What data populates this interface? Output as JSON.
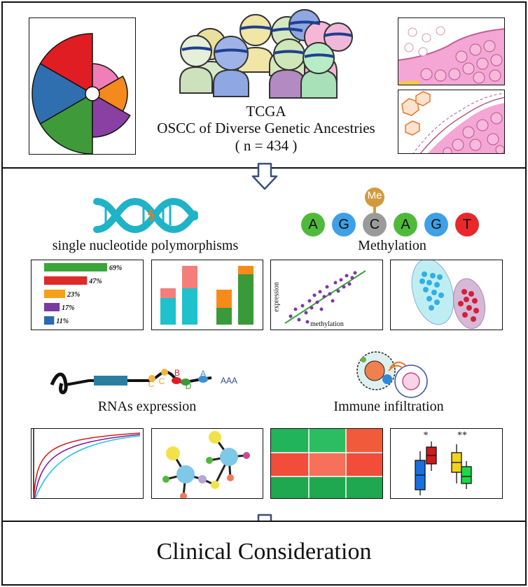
{
  "cohort": {
    "title": "TCGA",
    "subtitle": "OSCC of Diverse Genetic Ancestries",
    "count": "( n = 434 )"
  },
  "sections": {
    "snp": "single nucleotide polymorphisms",
    "methylation": "Methylation",
    "rna": "RNAs expression",
    "immune": "Immune infiltration",
    "clinical": "Clinical Consideration"
  },
  "methylation_icon": {
    "tag": "Me",
    "bases": [
      "A",
      "G",
      "C",
      "A",
      "G",
      "T"
    ],
    "colors": [
      "#4fba3a",
      "#3ea0e6",
      "#9a9a9a",
      "#4fba3a",
      "#3ea0e6",
      "#e8282b"
    ]
  },
  "snp_bars": {
    "labels": [
      "69%",
      "47%",
      "23%",
      "17%",
      "11%"
    ],
    "values": [
      69,
      47,
      23,
      17,
      11
    ],
    "colors": [
      "#3aa63a",
      "#dd2a2a",
      "#f5a01a",
      "#7a3aa0",
      "#2a6ab0"
    ]
  },
  "scatter_axes": {
    "xlabel": "methylation",
    "ylabel": "expression"
  },
  "rna_labels": {
    "c1": "C",
    "c2": "C",
    "b": "B",
    "d": "D",
    "a": "A",
    "tail": "AAA"
  },
  "boxplot_marks": {
    "sig1": "*",
    "sig2": "**"
  }
}
